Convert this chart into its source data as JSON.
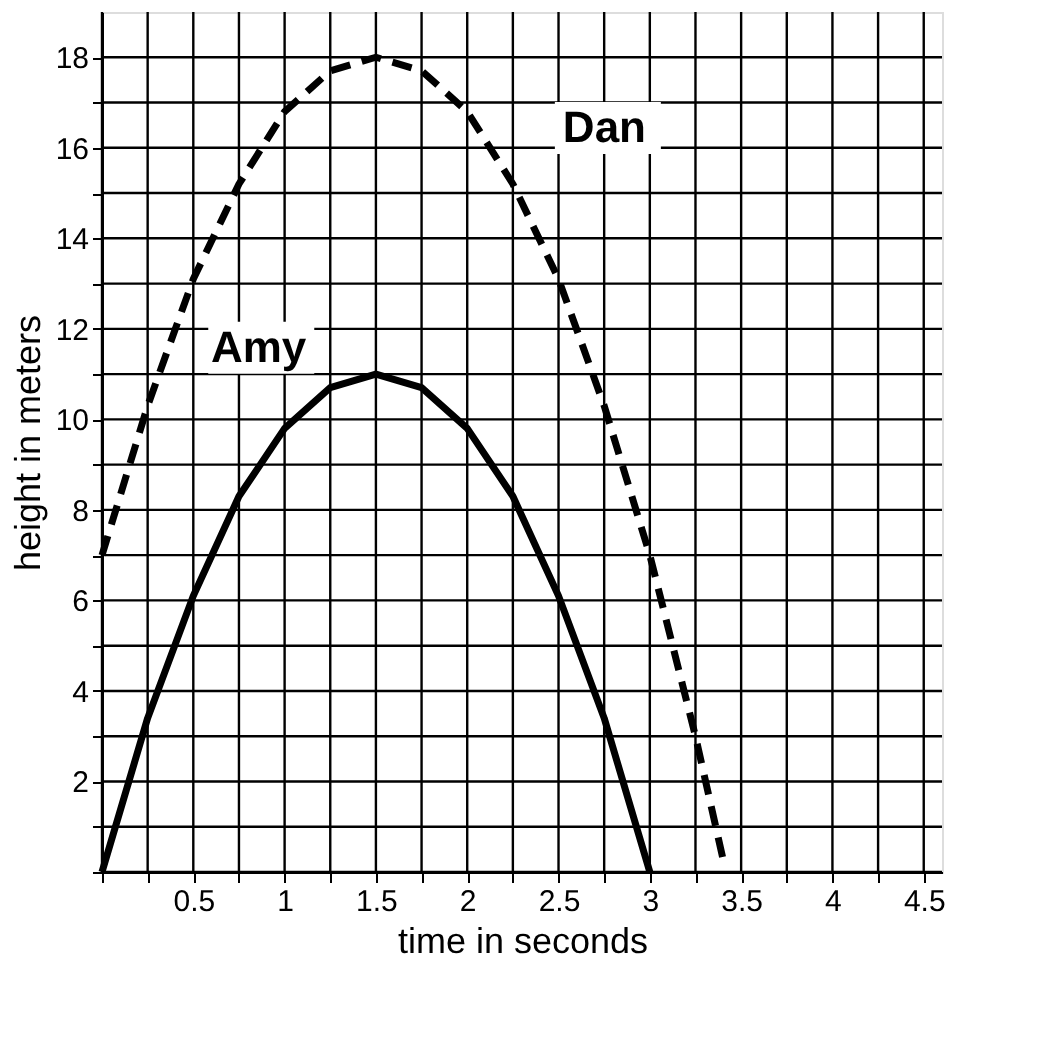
{
  "chart_data": {
    "type": "line",
    "xlabel": "time in seconds",
    "ylabel": "height in meters",
    "xlim": [
      0,
      4.6
    ],
    "ylim": [
      0,
      19
    ],
    "xticks": [
      {
        "value": 0,
        "label": null
      },
      {
        "value": 0.25,
        "label": null
      },
      0.5,
      {
        "value": 0.75,
        "label": null
      },
      1,
      {
        "value": 1.25,
        "label": null
      },
      1.5,
      {
        "value": 1.75,
        "label": null
      },
      2,
      {
        "value": 2.25,
        "label": null
      },
      2.5,
      {
        "value": 2.75,
        "label": null
      },
      3,
      {
        "value": 3.25,
        "label": null
      },
      3.5,
      {
        "value": 3.75,
        "label": null
      },
      4,
      {
        "value": 4.25,
        "label": null
      },
      4.5
    ],
    "yticks": [
      {
        "value": 0,
        "label": null
      },
      {
        "value": 1,
        "label": null
      },
      2,
      {
        "value": 3,
        "label": null
      },
      4,
      {
        "value": 5,
        "label": null
      },
      6,
      {
        "value": 7,
        "label": null
      },
      8,
      {
        "value": 9,
        "label": null
      },
      10,
      {
        "value": 11,
        "label": null
      },
      12,
      {
        "value": 13,
        "label": null
      },
      14,
      {
        "value": 15,
        "label": null
      },
      16,
      {
        "value": 17,
        "label": null
      },
      18
    ],
    "grid": true,
    "marker": "none",
    "series": [
      {
        "name": "Dan",
        "color": "#000000",
        "line_style": "dashed",
        "x": [
          0,
          0.25,
          0.5,
          0.75,
          1,
          1.25,
          1.5,
          1.75,
          2,
          2.25,
          2.5,
          2.75,
          3,
          3.25,
          3.4
        ],
        "values": [
          7,
          10.3,
          13.1,
          15.2,
          16.8,
          17.7,
          18,
          17.7,
          16.8,
          15.2,
          13.1,
          10.3,
          7,
          3,
          0.3
        ]
      },
      {
        "name": "Amy",
        "color": "#000000",
        "line_style": "solid",
        "x": [
          0,
          0.25,
          0.5,
          0.75,
          1,
          1.25,
          1.5,
          1.75,
          2,
          2.25,
          2.5,
          2.75,
          3
        ],
        "values": [
          0,
          3.4,
          6.1,
          8.3,
          9.8,
          10.7,
          11,
          10.7,
          9.8,
          8.3,
          6.1,
          3.4,
          0
        ]
      }
    ]
  }
}
